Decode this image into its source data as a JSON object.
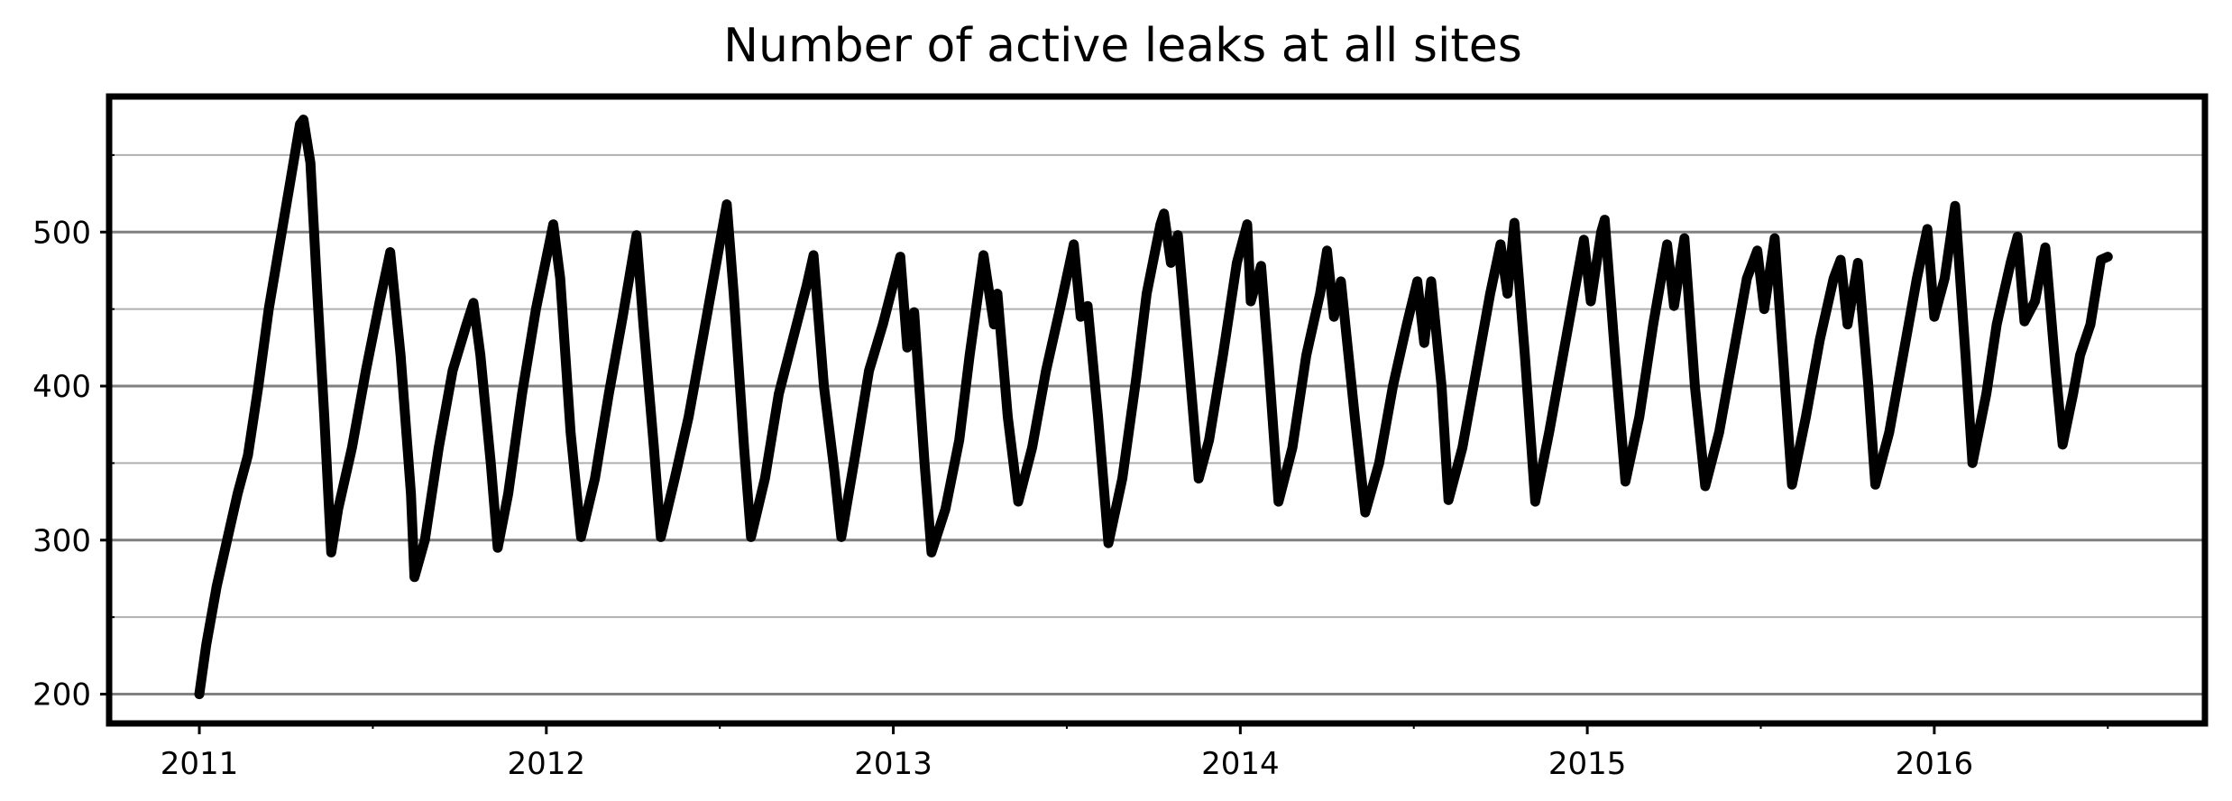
{
  "chart_data": {
    "type": "line",
    "title": "Number of active leaks at all sites",
    "xlabel": "",
    "ylabel": "",
    "xlim": [
      2010.74,
      2016.78
    ],
    "ylim": [
      181,
      588
    ],
    "y_major_ticks": [
      200,
      300,
      400,
      500
    ],
    "y_minor_ticks": [
      250,
      350,
      450,
      550
    ],
    "x_ticks": [
      {
        "value": 2011,
        "label": "2011"
      },
      {
        "value": 2012,
        "label": "2012"
      },
      {
        "value": 2013,
        "label": "2013"
      },
      {
        "value": 2014,
        "label": "2014"
      },
      {
        "value": 2015,
        "label": "2015"
      },
      {
        "value": 2016,
        "label": "2016"
      }
    ],
    "x_minor_ticks": [
      2011.5,
      2012.5,
      2013.5,
      2014.5,
      2015.5,
      2016.5
    ],
    "grid": {
      "major_y": true,
      "minor_y": true,
      "x": false
    },
    "colors": {
      "line": "#000000",
      "major_grid": "#808080",
      "minor_grid": "#b0b0b0"
    },
    "series": [
      {
        "points": [
          [
            2011.0,
            200
          ],
          [
            2011.02,
            232
          ],
          [
            2011.05,
            270
          ],
          [
            2011.08,
            300
          ],
          [
            2011.11,
            330
          ],
          [
            2011.14,
            355
          ],
          [
            2011.17,
            400
          ],
          [
            2011.2,
            450
          ],
          [
            2011.23,
            490
          ],
          [
            2011.26,
            530
          ],
          [
            2011.29,
            570
          ],
          [
            2011.3,
            573
          ],
          [
            2011.32,
            545
          ],
          [
            2011.34,
            460
          ],
          [
            2011.36,
            380
          ],
          [
            2011.38,
            292
          ],
          [
            2011.4,
            320
          ],
          [
            2011.44,
            360
          ],
          [
            2011.48,
            410
          ],
          [
            2011.52,
            455
          ],
          [
            2011.55,
            487
          ],
          [
            2011.58,
            420
          ],
          [
            2011.61,
            330
          ],
          [
            2011.62,
            276
          ],
          [
            2011.65,
            300
          ],
          [
            2011.69,
            360
          ],
          [
            2011.73,
            410
          ],
          [
            2011.77,
            440
          ],
          [
            2011.79,
            454
          ],
          [
            2011.81,
            420
          ],
          [
            2011.84,
            350
          ],
          [
            2011.86,
            295
          ],
          [
            2011.89,
            330
          ],
          [
            2011.93,
            395
          ],
          [
            2011.97,
            450
          ],
          [
            2012.02,
            505
          ],
          [
            2012.04,
            470
          ],
          [
            2012.07,
            370
          ],
          [
            2012.1,
            302
          ],
          [
            2012.14,
            340
          ],
          [
            2012.18,
            395
          ],
          [
            2012.22,
            445
          ],
          [
            2012.25,
            485
          ],
          [
            2012.26,
            498
          ],
          [
            2012.28,
            440
          ],
          [
            2012.31,
            360
          ],
          [
            2012.33,
            302
          ],
          [
            2012.37,
            340
          ],
          [
            2012.41,
            380
          ],
          [
            2012.45,
            430
          ],
          [
            2012.49,
            480
          ],
          [
            2012.52,
            518
          ],
          [
            2012.54,
            460
          ],
          [
            2012.57,
            360
          ],
          [
            2012.59,
            302
          ],
          [
            2012.63,
            340
          ],
          [
            2012.67,
            395
          ],
          [
            2012.71,
            430
          ],
          [
            2012.75,
            465
          ],
          [
            2012.77,
            485
          ],
          [
            2012.8,
            400
          ],
          [
            2012.83,
            345
          ],
          [
            2012.85,
            302
          ],
          [
            2012.89,
            355
          ],
          [
            2012.93,
            410
          ],
          [
            2012.97,
            440
          ],
          [
            2013.02,
            484
          ],
          [
            2013.04,
            425
          ],
          [
            2013.06,
            448
          ],
          [
            2013.09,
            350
          ],
          [
            2013.11,
            292
          ],
          [
            2013.15,
            320
          ],
          [
            2013.19,
            365
          ],
          [
            2013.22,
            420
          ],
          [
            2013.26,
            485
          ],
          [
            2013.29,
            440
          ],
          [
            2013.3,
            460
          ],
          [
            2013.33,
            380
          ],
          [
            2013.36,
            325
          ],
          [
            2013.4,
            360
          ],
          [
            2013.44,
            410
          ],
          [
            2013.48,
            450
          ],
          [
            2013.52,
            492
          ],
          [
            2013.54,
            445
          ],
          [
            2013.56,
            452
          ],
          [
            2013.59,
            380
          ],
          [
            2013.62,
            298
          ],
          [
            2013.66,
            340
          ],
          [
            2013.7,
            405
          ],
          [
            2013.73,
            460
          ],
          [
            2013.77,
            505
          ],
          [
            2013.78,
            512
          ],
          [
            2013.8,
            480
          ],
          [
            2013.82,
            498
          ],
          [
            2013.85,
            420
          ],
          [
            2013.88,
            340
          ],
          [
            2013.91,
            365
          ],
          [
            2013.95,
            420
          ],
          [
            2013.99,
            480
          ],
          [
            2014.02,
            505
          ],
          [
            2014.03,
            455
          ],
          [
            2014.06,
            478
          ],
          [
            2014.08,
            420
          ],
          [
            2014.11,
            325
          ],
          [
            2014.15,
            360
          ],
          [
            2014.19,
            420
          ],
          [
            2014.23,
            460
          ],
          [
            2014.25,
            488
          ],
          [
            2014.27,
            445
          ],
          [
            2014.29,
            468
          ],
          [
            2014.33,
            380
          ],
          [
            2014.36,
            318
          ],
          [
            2014.4,
            350
          ],
          [
            2014.44,
            400
          ],
          [
            2014.48,
            440
          ],
          [
            2014.51,
            468
          ],
          [
            2014.53,
            428
          ],
          [
            2014.55,
            468
          ],
          [
            2014.58,
            400
          ],
          [
            2014.6,
            326
          ],
          [
            2014.64,
            360
          ],
          [
            2014.68,
            410
          ],
          [
            2014.72,
            460
          ],
          [
            2014.75,
            492
          ],
          [
            2014.77,
            460
          ],
          [
            2014.79,
            506
          ],
          [
            2014.82,
            420
          ],
          [
            2014.85,
            325
          ],
          [
            2014.89,
            370
          ],
          [
            2014.93,
            420
          ],
          [
            2014.97,
            470
          ],
          [
            2014.99,
            495
          ],
          [
            2015.01,
            455
          ],
          [
            2015.04,
            500
          ],
          [
            2015.05,
            508
          ],
          [
            2015.08,
            420
          ],
          [
            2015.11,
            338
          ],
          [
            2015.15,
            380
          ],
          [
            2015.19,
            440
          ],
          [
            2015.23,
            492
          ],
          [
            2015.25,
            452
          ],
          [
            2015.28,
            496
          ],
          [
            2015.31,
            400
          ],
          [
            2015.34,
            335
          ],
          [
            2015.38,
            370
          ],
          [
            2015.42,
            420
          ],
          [
            2015.46,
            470
          ],
          [
            2015.49,
            488
          ],
          [
            2015.51,
            450
          ],
          [
            2015.54,
            496
          ],
          [
            2015.57,
            400
          ],
          [
            2015.59,
            336
          ],
          [
            2015.63,
            380
          ],
          [
            2015.67,
            430
          ],
          [
            2015.71,
            470
          ],
          [
            2015.73,
            482
          ],
          [
            2015.75,
            440
          ],
          [
            2015.78,
            480
          ],
          [
            2015.81,
            400
          ],
          [
            2015.83,
            336
          ],
          [
            2015.87,
            370
          ],
          [
            2015.91,
            420
          ],
          [
            2015.95,
            470
          ],
          [
            2015.98,
            502
          ],
          [
            2016.0,
            445
          ],
          [
            2016.03,
            470
          ],
          [
            2016.06,
            517
          ],
          [
            2016.09,
            420
          ],
          [
            2016.11,
            350
          ],
          [
            2016.15,
            395
          ],
          [
            2016.18,
            440
          ],
          [
            2016.22,
            480
          ],
          [
            2016.24,
            497
          ],
          [
            2016.26,
            442
          ],
          [
            2016.29,
            455
          ],
          [
            2016.32,
            490
          ],
          [
            2016.35,
            410
          ],
          [
            2016.37,
            362
          ],
          [
            2016.4,
            395
          ],
          [
            2016.42,
            420
          ],
          [
            2016.45,
            440
          ],
          [
            2016.48,
            482
          ],
          [
            2016.5,
            484
          ]
        ]
      }
    ]
  }
}
